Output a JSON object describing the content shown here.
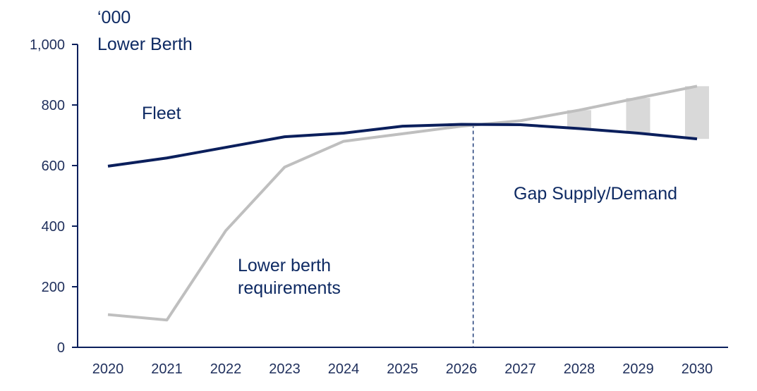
{
  "chart_data": {
    "type": "line",
    "x": [
      "2020",
      "2021",
      "2022",
      "2023",
      "2024",
      "2025",
      "2026",
      "2027",
      "2028",
      "2029",
      "2030"
    ],
    "ylim": [
      0,
      1000
    ],
    "yticks": [
      0,
      200,
      400,
      600,
      800,
      1000
    ],
    "ytick_labels": [
      "0",
      "200",
      "400",
      "600",
      "800",
      "1,000"
    ],
    "unit_line1": "‘000",
    "unit_line2": "Lower Berth",
    "series": [
      {
        "name": "Fleet",
        "color": "#0b1f5c",
        "values": [
          598,
          625,
          660,
          695,
          707,
          730,
          736,
          735,
          722,
          707,
          688
        ]
      },
      {
        "name": "Lower berth requirements",
        "color": "#bfbfbf",
        "values": [
          108,
          90,
          385,
          595,
          680,
          705,
          730,
          748,
          783,
          823,
          862
        ]
      }
    ],
    "gap": {
      "label": "Gap Supply/Demand",
      "color": "#d9d9d9",
      "divider_year": 2026.2,
      "bars": [
        {
          "x": 2028,
          "low": 722,
          "high": 783
        },
        {
          "x": 2029,
          "low": 707,
          "high": 823
        },
        {
          "x": 2030,
          "low": 688,
          "high": 862
        }
      ]
    },
    "annotations": {
      "fleet": "Fleet",
      "requirements_line1": "Lower berth",
      "requirements_line2": "requirements"
    },
    "grid": false,
    "legend": "none"
  }
}
